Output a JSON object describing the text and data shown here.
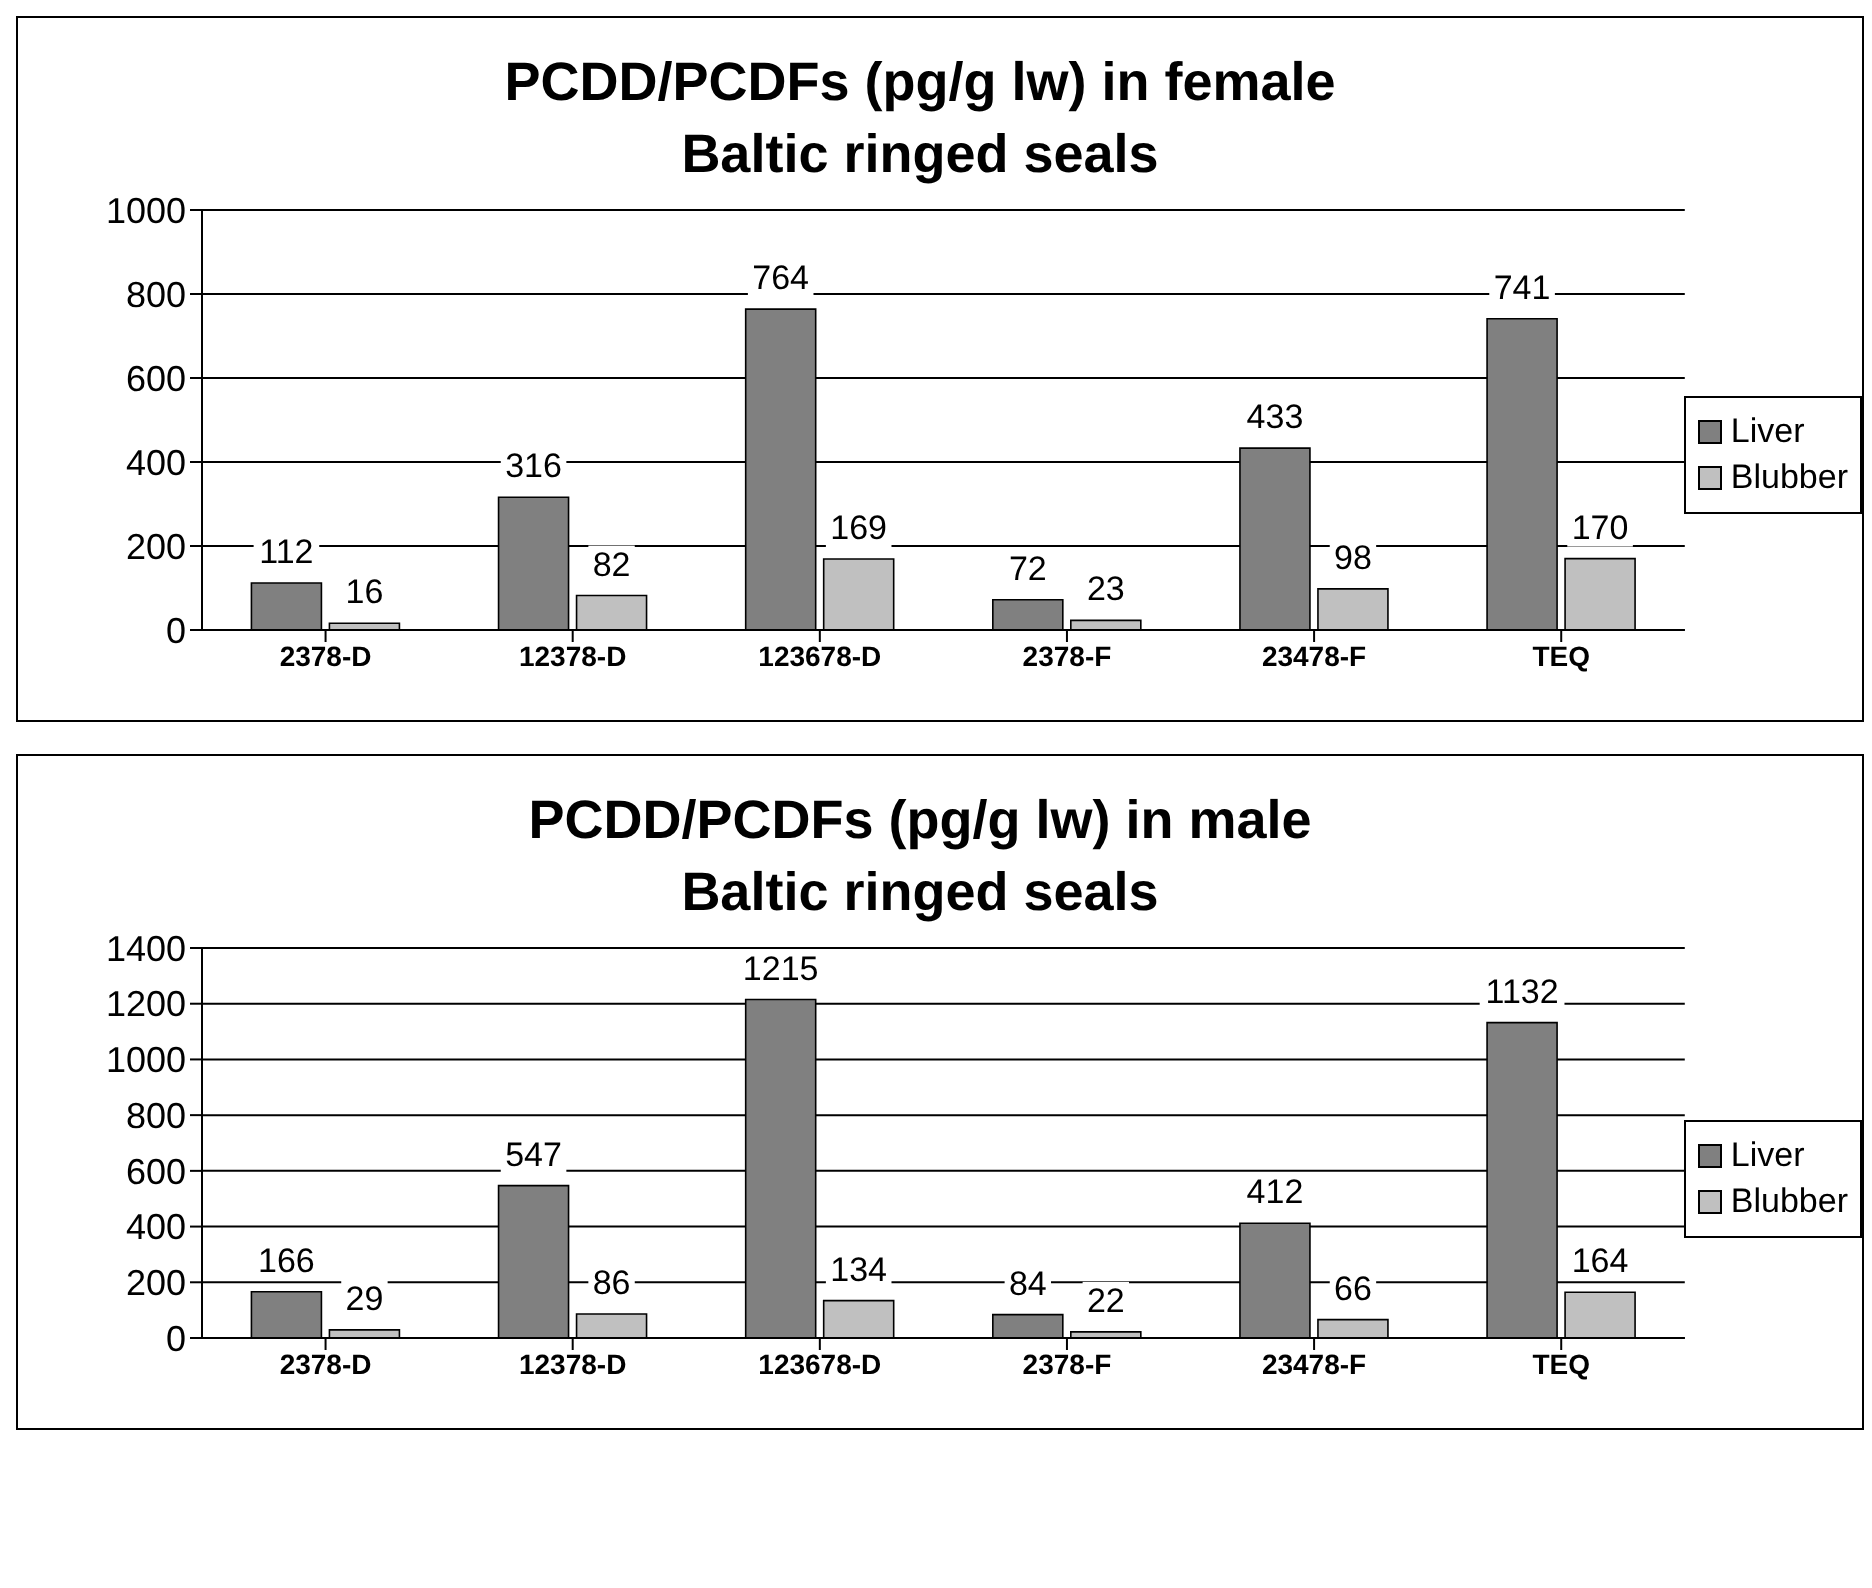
{
  "chart_data": [
    {
      "type": "bar",
      "title": "PCDD/PCDFs (pg/g lw) in female\nBaltic ringed seals",
      "categories": [
        "2378-D",
        "12378-D",
        "123678-D",
        "2378-F",
        "23478-F",
        "TEQ"
      ],
      "series": [
        {
          "name": "Liver",
          "color": "#808080",
          "values": [
            112,
            316,
            764,
            72,
            433,
            741
          ]
        },
        {
          "name": "Blubber",
          "color": "#c0c0c0",
          "values": [
            16,
            82,
            169,
            23,
            98,
            170
          ]
        }
      ],
      "ylim": [
        0,
        1000
      ],
      "yticks": [
        0,
        200,
        400,
        600,
        800,
        1000
      ],
      "grid": "y",
      "legend": "right",
      "data_labels": true
    },
    {
      "type": "bar",
      "title": "PCDD/PCDFs (pg/g lw) in male\nBaltic ringed seals",
      "categories": [
        "2378-D",
        "12378-D",
        "123678-D",
        "2378-F",
        "23478-F",
        "TEQ"
      ],
      "series": [
        {
          "name": "Liver",
          "color": "#808080",
          "values": [
            166,
            547,
            1215,
            84,
            412,
            1132
          ]
        },
        {
          "name": "Blubber",
          "color": "#c0c0c0",
          "values": [
            29,
            86,
            134,
            22,
            66,
            164
          ]
        }
      ],
      "ylim": [
        0,
        1400
      ],
      "yticks": [
        0,
        200,
        400,
        600,
        800,
        1000,
        1200,
        1400
      ],
      "grid": "y",
      "legend": "right",
      "data_labels": true
    }
  ]
}
